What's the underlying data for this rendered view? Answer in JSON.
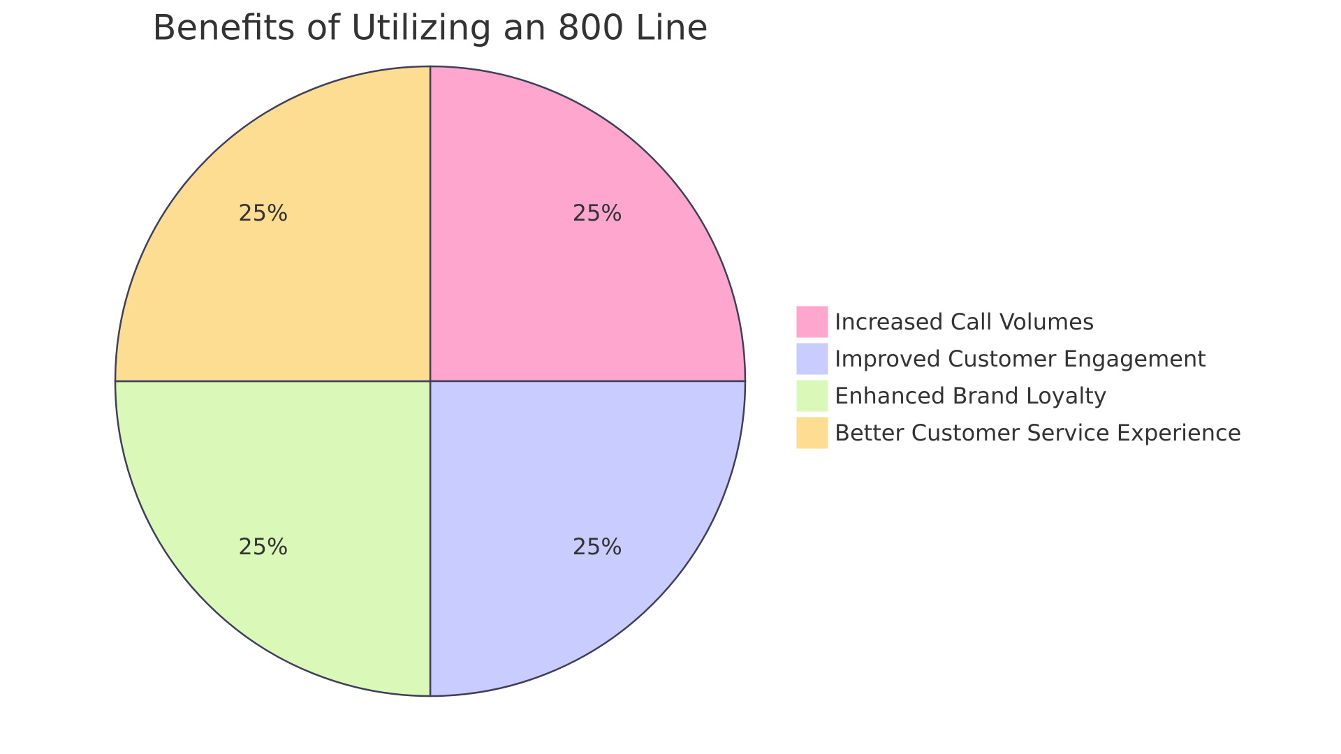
{
  "chart_data": {
    "type": "pie",
    "title": "Benefits of Utilizing an 800 Line",
    "categories": [
      "Increased Call Volumes",
      "Improved Customer Engagement",
      "Enhanced Brand Loyalty",
      "Better Customer Service Experience"
    ],
    "values": [
      25,
      25,
      25,
      25
    ],
    "value_labels": [
      "25%",
      "25%",
      "25%",
      "25%"
    ],
    "colors": [
      "#ffa6ce",
      "#c9ccff",
      "#daf9b8",
      "#fcdd92"
    ],
    "legend": "right"
  }
}
